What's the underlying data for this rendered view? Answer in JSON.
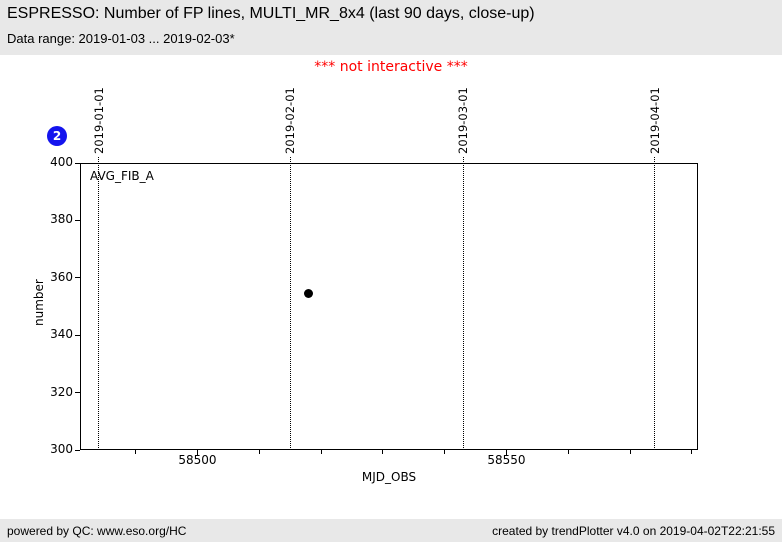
{
  "header": {
    "title": "ESPRESSO: Number of FP lines, MULTI_MR_8x4 (last 90 days, close-up)",
    "subtitle": "Data range: 2019-01-03 ... 2019-02-03*"
  },
  "notice": {
    "text": "*** not interactive ***"
  },
  "badge": {
    "label": "2"
  },
  "colors": {
    "band_bg": "#e8e8e8",
    "notice_red": "#ff0000",
    "badge_blue": "#1414ee",
    "point_black": "#000000"
  },
  "chart_data": {
    "type": "scatter",
    "title": "ESPRESSO: Number of FP lines, MULTI_MR_8x4 (last 90 days, close-up)",
    "xlabel": "MJD_OBS",
    "ylabel": "number",
    "xlim": [
      58481,
      58581
    ],
    "ylim": [
      300,
      400
    ],
    "x_major_ticks": [
      58500,
      58550
    ],
    "x_minor_tick_step": 10,
    "y_ticks": [
      300,
      320,
      340,
      360,
      380,
      400
    ],
    "grid": "off",
    "legend_position": "top-left-inside",
    "series": [
      {
        "name": "AVG_FIB_A",
        "marker": "filled-circle",
        "color": "#000000",
        "points": [
          {
            "x": 58518,
            "y": 354.5
          }
        ]
      }
    ],
    "date_gridlines": [
      {
        "label": "2019-01-01",
        "mjd": 58484
      },
      {
        "label": "2019-02-01",
        "mjd": 58515
      },
      {
        "label": "2019-03-01",
        "mjd": 58543
      },
      {
        "label": "2019-04-01",
        "mjd": 58574
      }
    ]
  },
  "footer": {
    "left": "powered by QC: www.eso.org/HC",
    "right": "created by trendPlotter v4.0 on 2019-04-02T22:21:55"
  }
}
